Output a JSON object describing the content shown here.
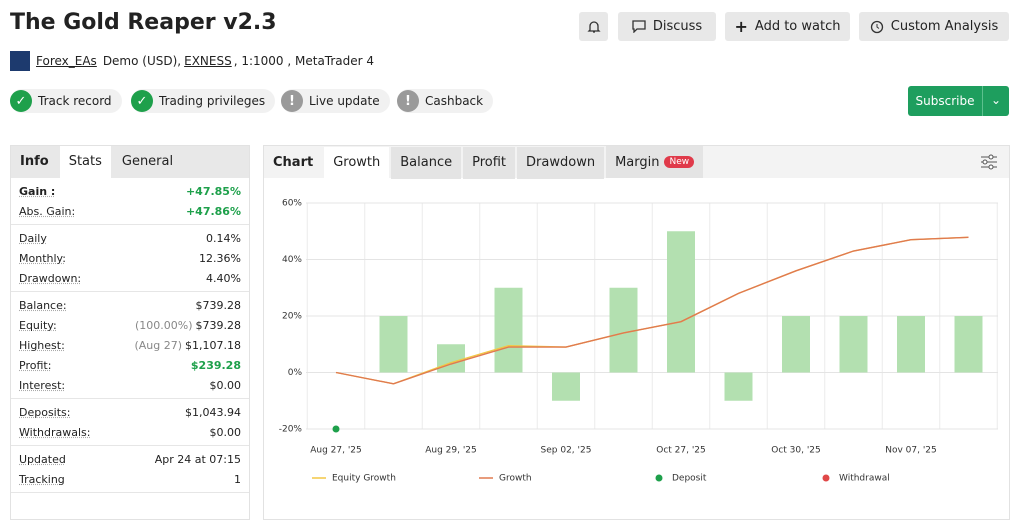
{
  "header": {
    "title": "The Gold Reaper v2.3",
    "buttons": [
      "Discuss",
      "Add to watch",
      "Custom Analysis"
    ],
    "account": {
      "user": "Forex_EAs",
      "type": "Demo (USD),",
      "broker": "EXNESS",
      "details": ", 1:1000 , MetaTrader 4"
    },
    "badges": [
      {
        "label": "Track record",
        "ok": true
      },
      {
        "label": "Trading privileges",
        "ok": true
      },
      {
        "label": "Live update",
        "ok": false
      },
      {
        "label": "Cashback",
        "ok": false
      }
    ],
    "subscribe": "Subscribe"
  },
  "stats": {
    "tabs": [
      "Info",
      "Stats",
      "General"
    ],
    "active_tab": 1,
    "groups": [
      [
        {
          "label": "Gain :",
          "value": "+47.85%",
          "green": true,
          "bold": true
        },
        {
          "label": "Abs. Gain:",
          "value": "+47.86%",
          "green": true
        }
      ],
      [
        {
          "label": "Daily",
          "value": "0.14%"
        },
        {
          "label": "Monthly:",
          "value": "12.36%"
        },
        {
          "label": "Drawdown:",
          "value": "4.40%"
        }
      ],
      [
        {
          "label": "Balance:",
          "value": "$739.28"
        },
        {
          "label": "Equity:",
          "note": "(100.00%)",
          "value": "$739.28"
        },
        {
          "label": "Highest:",
          "note": "(Aug 27)",
          "value": "$1,107.18"
        },
        {
          "label": "Profit:",
          "value": "$239.28",
          "green": true
        },
        {
          "label": "Interest:",
          "value": "$0.00"
        }
      ],
      [
        {
          "label": "Deposits:",
          "value": "$1,043.94"
        },
        {
          "label": "Withdrawals:",
          "value": "$0.00"
        }
      ],
      [
        {
          "label": "Updated",
          "value": "Apr 24 at 07:15"
        },
        {
          "label": "Tracking",
          "value": "1"
        }
      ]
    ]
  },
  "chart_tabs": {
    "label": "Chart",
    "tabs": [
      "Growth",
      "Balance",
      "Profit",
      "Drawdown",
      "Margin"
    ],
    "active_tab": 0,
    "new_badge": "New"
  },
  "chart_data": {
    "type": "bar-line",
    "categories": [
      "Aug 27, '25",
      null,
      "Aug 29, '25",
      null,
      "Sep 02, '25",
      null,
      "Oct 27, '25",
      null,
      "Oct 30, '25",
      null,
      "Nov 07, '25",
      null
    ],
    "bars": {
      "color": "#b3e0b0",
      "values": [
        null,
        20,
        10,
        30,
        -10,
        30,
        50,
        -10,
        20,
        20,
        20,
        20
      ]
    },
    "series": [
      {
        "name": "Equity Growth",
        "kind": "line",
        "color": "#f2c744",
        "values": [
          0,
          -4,
          3.5,
          9.5,
          9,
          14,
          18,
          28,
          36,
          43,
          47,
          47.86
        ]
      },
      {
        "name": "Growth",
        "kind": "line",
        "color": "#e07a50",
        "values": [
          0,
          -4,
          3,
          9,
          9,
          14,
          18,
          28,
          36,
          43,
          47,
          47.85
        ]
      },
      {
        "name": "Deposit",
        "kind": "point",
        "color": "#1ea04b",
        "values": [
          -20,
          null,
          null,
          null,
          null,
          null,
          null,
          null,
          null,
          null,
          null,
          null
        ]
      },
      {
        "name": "Withdrawal",
        "kind": "point",
        "color": "#e04848",
        "values": [
          null,
          null,
          null,
          null,
          null,
          null,
          null,
          null,
          null,
          null,
          null,
          null
        ]
      }
    ],
    "ylim": [
      -20,
      60
    ],
    "yticks": [
      {
        "value": -20,
        "label": "-20%"
      },
      {
        "value": 0,
        "label": "0%"
      },
      {
        "value": 20,
        "label": "20%"
      },
      {
        "value": 40,
        "label": "40%"
      },
      {
        "value": 60,
        "label": "60%"
      }
    ],
    "grid": true
  }
}
